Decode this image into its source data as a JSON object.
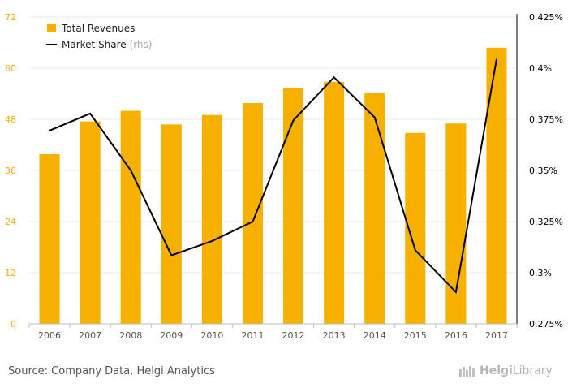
{
  "chart_data": {
    "type": "bar",
    "categories": [
      "2006",
      "2007",
      "2008",
      "2009",
      "2010",
      "2011",
      "2012",
      "2013",
      "2014",
      "2015",
      "2016",
      "2017"
    ],
    "series": [
      {
        "name": "Total Revenues",
        "kind": "bar",
        "axis": "left",
        "color": "#f5b000",
        "values": [
          39.8,
          47.5,
          50.0,
          46.8,
          49.0,
          51.8,
          55.3,
          56.8,
          54.2,
          44.8,
          47.0,
          64.8
        ]
      },
      {
        "name": "Market Share",
        "name_suffix": "(rhs)",
        "kind": "line",
        "axis": "right",
        "color": "#000000",
        "values": [
          0.3695,
          0.3778,
          0.35,
          0.3085,
          0.3155,
          0.325,
          0.3745,
          0.3955,
          0.376,
          0.311,
          0.2905,
          0.4045
        ]
      }
    ],
    "y_left": {
      "min": 0,
      "max": 72,
      "ticks": [
        "0",
        "12",
        "24",
        "36",
        "48",
        "60",
        "72"
      ]
    },
    "y_right": {
      "min": 0.275,
      "max": 0.425,
      "ticks": [
        "0.275%",
        "0.3%",
        "0.325%",
        "0.35%",
        "0.375%",
        "0.4%",
        "0.425%"
      ]
    },
    "grid": true,
    "legend_position": "top-left"
  },
  "footer": {
    "source": "Source: Company Data, Helgi Analytics",
    "logo_part1": "Helgi",
    "logo_part2": "Library"
  }
}
